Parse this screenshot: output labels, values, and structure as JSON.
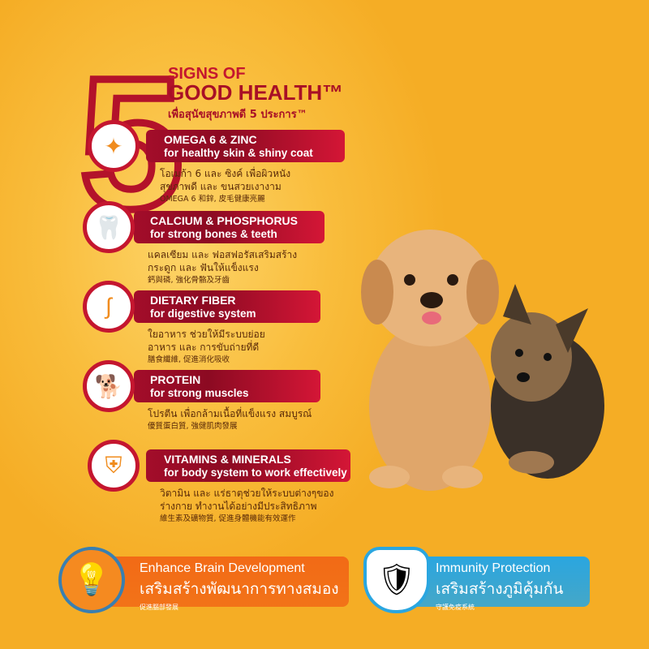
{
  "header": {
    "number": "5",
    "line1": "SIGNS OF",
    "line2": "GOOD HEALTH™",
    "line3": "เพื่อสุนัขสุขภาพดี 5 ประการ™"
  },
  "items": [
    {
      "icon": "hair-icon",
      "title": "OMEGA 6 & ZINC",
      "subtitle": "for healthy skin & shiny coat",
      "thai1": "โอเมก้า 6 และ ซิงค์ เพื่อผิวหนัง",
      "thai2": "สุขภาพดี และ ขนสวยเงางาม",
      "chinese": "OMEGA 6 和鋅, 皮毛健康亮麗"
    },
    {
      "icon": "tooth-icon",
      "title": "CALCIUM & PHOSPHORUS",
      "subtitle": "for strong bones & teeth",
      "thai1": "แคลเซียม และ ฟอสฟอรัสเสริมสร้าง",
      "thai2": "กระดูก และ ฟันให้แข็งแรง",
      "chinese": "鈣與磷, 強化骨骼及牙齒"
    },
    {
      "icon": "stomach-icon",
      "title": "DIETARY FIBER",
      "subtitle": "for digestive system",
      "thai1": "ใยอาหาร ช่วยให้มีระบบย่อย",
      "thai2": "อาหาร และ การขับถ่ายที่ดี",
      "chinese": "膳食纖維, 促進消化吸收"
    },
    {
      "icon": "running-dog-icon",
      "title": "PROTEIN",
      "subtitle": "for strong muscles",
      "thai1": "โปรตีน เพื่อกล้ามเนื้อที่แข็งแรง สมบูรณ์",
      "thai2": "",
      "chinese": "優質蛋白質, 強健肌肉發展"
    },
    {
      "icon": "shield-icon",
      "title": "VITAMINS & MINERALS",
      "subtitle": "for body system to work effectively",
      "thai1": "วิตามิน และ แร่ธาตุช่วยให้ระบบต่างๆของ",
      "thai2": "ร่างกาย ทำงานได้อย่างมีประสิทธิภาพ",
      "chinese": "維生素及礦物質, 促進身體機能有效運作"
    }
  ],
  "badges": [
    {
      "icon": "lightbulb-icon",
      "title": "Enhance Brain Development",
      "thai": "เสริมสร้างพัฒนาการทางสมอง",
      "chinese": "促進腦部發展",
      "color": "#f26a16"
    },
    {
      "icon": "shield-dog-icon",
      "title": "Immunity Protection",
      "thai": "เสริมสร้างภูมิคุ้มกัน",
      "chinese": "守護免疫系統",
      "color": "#2aa6e0"
    }
  ],
  "colors": {
    "background": "#f5ad25",
    "red": "#a80f26"
  }
}
